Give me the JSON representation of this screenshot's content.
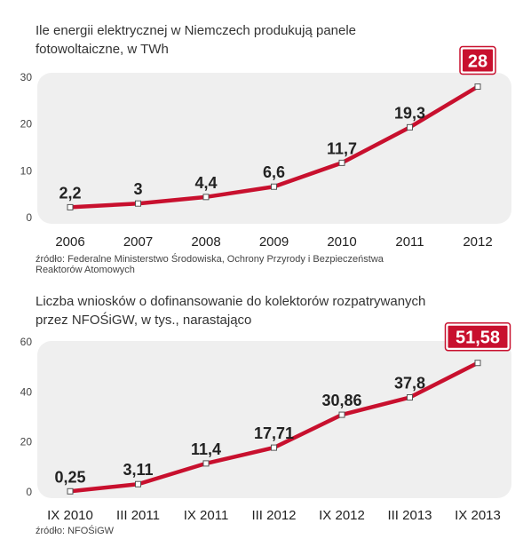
{
  "accent_color": "#c8102e",
  "chart_data": [
    {
      "type": "line",
      "title_lines": [
        "Ile energii elektrycznej w Niemczech produkują panele",
        "fotowoltaiczne, w TWh"
      ],
      "categories": [
        "2006",
        "2007",
        "2008",
        "2009",
        "2010",
        "2011",
        "2012"
      ],
      "values": [
        2.2,
        3,
        4.4,
        6.6,
        11.7,
        19.3,
        28
      ],
      "value_labels": [
        "2,2",
        "3",
        "4,4",
        "6,6",
        "11,7",
        "19,3",
        "28"
      ],
      "highlight_last": true,
      "yticks": [
        0,
        10,
        20,
        30
      ],
      "ylim": [
        0,
        30
      ],
      "grid": false,
      "source_lines": [
        "źródło: Federalne Ministerstwo Środowiska, Ochrony Przyrody i Bezpieczeństwa",
        "Reaktorów Atomowych"
      ]
    },
    {
      "type": "line",
      "title_lines": [
        "Liczba wniosków o dofinansowanie do kolektorów rozpatrywanych",
        "przez NFOŚiGW, w tys., narastająco"
      ],
      "categories": [
        "IX 2010",
        "III 2011",
        "IX 2011",
        "III 2012",
        "IX 2012",
        "III 2013",
        "IX 2013"
      ],
      "values": [
        0.25,
        3.11,
        11.4,
        17.71,
        30.86,
        37.8,
        51.58
      ],
      "value_labels": [
        "0,25",
        "3,11",
        "11,4",
        "17,71",
        "30,86",
        "37,8",
        "51,58"
      ],
      "highlight_last": true,
      "yticks": [
        0,
        20,
        40,
        60
      ],
      "ylim": [
        0,
        60
      ],
      "grid": false,
      "source_lines": [
        "źródło: NFOŚiGW"
      ]
    }
  ]
}
